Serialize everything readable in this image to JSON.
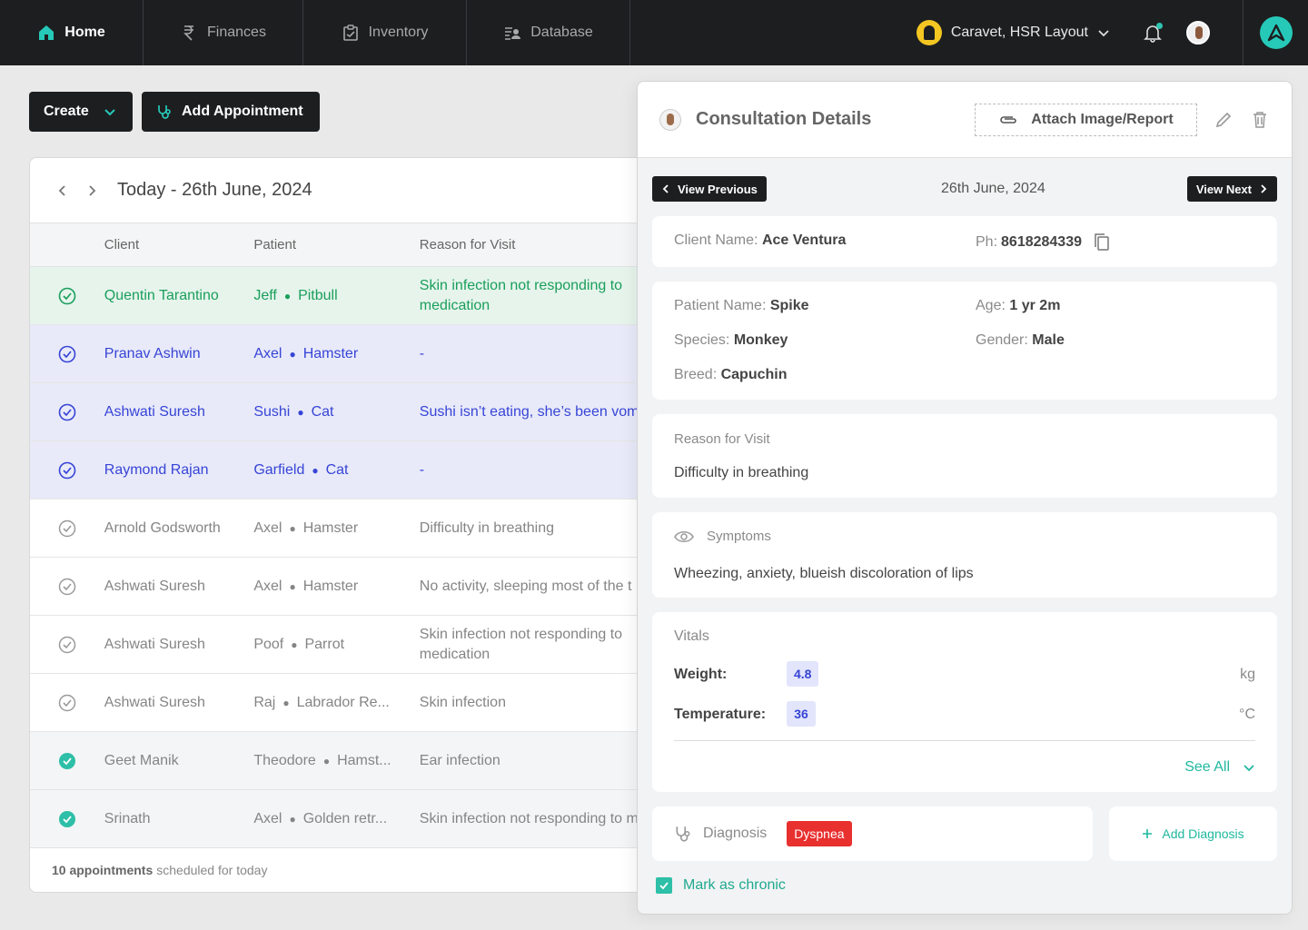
{
  "nav": {
    "tabs": [
      {
        "label": "Home",
        "icon": "home-icon"
      },
      {
        "label": "Finances",
        "icon": "rupee-icon"
      },
      {
        "label": "Inventory",
        "icon": "clipboard-icon"
      },
      {
        "label": "Database",
        "icon": "database-icon"
      }
    ],
    "clinic": "Caravet, HSR Layout",
    "accent": "#26c9b8"
  },
  "actions": {
    "create_label": "Create",
    "add_appointment_label": "Add Appointment"
  },
  "list": {
    "title": "Today - 26th June, 2024",
    "columns": {
      "client": "Client",
      "patient": "Patient",
      "reason": "Reason for Visit"
    },
    "rows": [
      {
        "client": "Quentin Tarantino",
        "pet": "Jeff",
        "species": "Pitbull",
        "reason": "Skin infection not responding to medication"
      },
      {
        "client": "Pranav Ashwin",
        "pet": "Axel",
        "species": "Hamster",
        "reason": "-"
      },
      {
        "client": "Ashwati Suresh",
        "pet": "Sushi",
        "species": "Cat",
        "reason": "Sushi isn’t eating, she’s been vom"
      },
      {
        "client": "Raymond Rajan",
        "pet": "Garfield",
        "species": "Cat",
        "reason": "-"
      },
      {
        "client": "Arnold Godsworth",
        "pet": "Axel",
        "species": "Hamster",
        "reason": "Difficulty in breathing"
      },
      {
        "client": "Ashwati Suresh",
        "pet": "Axel",
        "species": "Hamster",
        "reason": "No activity, sleeping most of the t"
      },
      {
        "client": "Ashwati Suresh",
        "pet": "Poof",
        "species": "Parrot",
        "reason": "Skin infection not responding to medication"
      },
      {
        "client": "Ashwati Suresh",
        "pet": "Raj",
        "species": "Labrador Re...",
        "reason": "Skin infection"
      },
      {
        "client": "Geet Manik",
        "pet": "Theodore",
        "species": "Hamst...",
        "reason": "Ear infection"
      },
      {
        "client": "Srinath",
        "pet": "Axel",
        "species": "Golden retr...",
        "reason": "Skin infection not responding to m"
      }
    ],
    "footer_count": "10 appointments",
    "footer_text": "scheduled for today"
  },
  "detail": {
    "title": "Consultation Details",
    "attach_label": "Attach Image/Report",
    "prev_label": "View Previous",
    "next_label": "View Next",
    "date": "26th June, 2024",
    "client": {
      "name_label": "Client Name:",
      "name": "Ace Ventura",
      "phone_label": "Ph:",
      "phone": "8618284339"
    },
    "patient": {
      "name_label": "Patient Name:",
      "name": "Spike",
      "age_label": "Age:",
      "age": "1 yr 2m",
      "species_label": "Species:",
      "species": "Monkey",
      "gender_label": "Gender:",
      "gender": "Male",
      "breed_label": "Breed:",
      "breed": "Capuchin"
    },
    "reason": {
      "label": "Reason for Visit",
      "value": "Difficulty in breathing"
    },
    "symptoms": {
      "label": "Symptoms",
      "value": "Wheezing, anxiety, blueish discoloration of lips"
    },
    "vitals": {
      "label": "Vitals",
      "items": [
        {
          "label": "Weight:",
          "value": "4.8",
          "unit": "kg"
        },
        {
          "label": "Temperature:",
          "value": "36",
          "unit": "°C"
        }
      ],
      "see_all": "See All"
    },
    "diagnosis": {
      "label": "Diagnosis",
      "tag": "Dyspnea",
      "add_label": "Add Diagnosis"
    },
    "chronic_label": "Mark as chronic"
  }
}
